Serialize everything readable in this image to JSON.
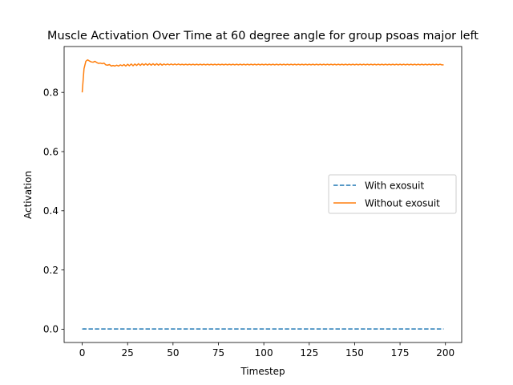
{
  "chart_data": {
    "type": "line",
    "title": "Muscle Activation Over Time at 60 degree angle for group psoas major left",
    "xlabel": "Timestep",
    "ylabel": "Activation",
    "xlim": [
      -9.95,
      208.95
    ],
    "ylim": [
      -0.045,
      0.955
    ],
    "xticks": [
      0,
      25,
      50,
      75,
      100,
      125,
      150,
      175,
      200
    ],
    "yticks": [
      0.0,
      0.2,
      0.4,
      0.6,
      0.8
    ],
    "ytick_labels": [
      "0.0",
      "0.2",
      "0.4",
      "0.6",
      "0.8"
    ],
    "grid": false,
    "legend_position": "center-right",
    "series": [
      {
        "name": "With exosuit",
        "color": "#1f77b4",
        "linestyle": "dashed",
        "x_start": 0,
        "x_step": 1,
        "values": [
          0.0005,
          0.001,
          0.0008,
          0.0006,
          0.0007,
          0.0006,
          0.0008,
          0.0006,
          0.0007,
          0.0006,
          0.0007,
          0.0006,
          0.0007,
          0.0006,
          0.0007,
          0.0006,
          0.0007,
          0.0006,
          0.0007,
          0.0006,
          0.0007,
          0.0006,
          0.0007,
          0.0006,
          0.0007,
          0.0006,
          0.0007,
          0.0006,
          0.0007,
          0.0006,
          0.0007,
          0.0006,
          0.0007,
          0.0006,
          0.0007,
          0.0006,
          0.0007,
          0.0006,
          0.0007,
          0.0006,
          0.0007,
          0.0006,
          0.0007,
          0.0006,
          0.0007,
          0.0006,
          0.0007,
          0.0006,
          0.0007,
          0.0006,
          0.0007,
          0.0006,
          0.0007,
          0.0006,
          0.0007,
          0.0006,
          0.0007,
          0.0006,
          0.0007,
          0.0006,
          0.0007,
          0.0006,
          0.0007,
          0.0006,
          0.0007,
          0.0006,
          0.0007,
          0.0006,
          0.0007,
          0.0006,
          0.0007,
          0.0006,
          0.0007,
          0.0006,
          0.0007,
          0.0006,
          0.0007,
          0.0006,
          0.0007,
          0.0006,
          0.0007,
          0.0006,
          0.0007,
          0.0006,
          0.0007,
          0.0006,
          0.0007,
          0.0006,
          0.0007,
          0.0006,
          0.0007,
          0.0006,
          0.0007,
          0.0006,
          0.0007,
          0.0006,
          0.0007,
          0.0006,
          0.0007,
          0.0006,
          0.0007,
          0.0006,
          0.0007,
          0.0006,
          0.0007,
          0.0006,
          0.0007,
          0.0006,
          0.0007,
          0.0006,
          0.0007,
          0.0006,
          0.0007,
          0.0006,
          0.0007,
          0.0006,
          0.0007,
          0.0006,
          0.0007,
          0.0006,
          0.0007,
          0.0006,
          0.0007,
          0.0006,
          0.0007,
          0.0006,
          0.0007,
          0.0006,
          0.0007,
          0.0006,
          0.0007,
          0.0006,
          0.0007,
          0.0006,
          0.0007,
          0.0006,
          0.0007,
          0.0006,
          0.0007,
          0.0006,
          0.0007,
          0.0006,
          0.0007,
          0.0006,
          0.0007,
          0.0006,
          0.0007,
          0.0006,
          0.0007,
          0.0006,
          0.0007,
          0.0006,
          0.0007,
          0.0006,
          0.0007,
          0.0006,
          0.0007,
          0.0006,
          0.0007,
          0.0006,
          0.0007,
          0.0006,
          0.0007,
          0.0006,
          0.0007,
          0.0006,
          0.0007,
          0.0006,
          0.0007,
          0.0006,
          0.0007,
          0.0006,
          0.0007,
          0.0006,
          0.0007,
          0.0006,
          0.0007,
          0.0006,
          0.0007,
          0.0006,
          0.0007,
          0.0006,
          0.0007,
          0.0006,
          0.0007,
          0.0006,
          0.0007,
          0.0006,
          0.0007,
          0.0006,
          0.0007,
          0.0006,
          0.0007,
          0.0006,
          0.0007,
          0.0006,
          0.0007,
          0.0006,
          0.0007,
          0.0006
        ]
      },
      {
        "name": "Without exosuit",
        "color": "#ff7f0e",
        "linestyle": "solid",
        "x_start": 0,
        "x_step": 1,
        "values": [
          0.8,
          0.88,
          0.905,
          0.91,
          0.906,
          0.903,
          0.902,
          0.905,
          0.901,
          0.898,
          0.899,
          0.897,
          0.899,
          0.893,
          0.892,
          0.894,
          0.889,
          0.891,
          0.889,
          0.892,
          0.889,
          0.893,
          0.89,
          0.894,
          0.889,
          0.895,
          0.89,
          0.896,
          0.89,
          0.896,
          0.891,
          0.897,
          0.891,
          0.897,
          0.892,
          0.897,
          0.892,
          0.897,
          0.892,
          0.897,
          0.892,
          0.897,
          0.892,
          0.897,
          0.892,
          0.896,
          0.893,
          0.896,
          0.893,
          0.896,
          0.893,
          0.896,
          0.893,
          0.896,
          0.893,
          0.895,
          0.893,
          0.895,
          0.893,
          0.895,
          0.893,
          0.895,
          0.893,
          0.895,
          0.893,
          0.895,
          0.893,
          0.895,
          0.893,
          0.895,
          0.893,
          0.895,
          0.893,
          0.895,
          0.893,
          0.895,
          0.893,
          0.895,
          0.893,
          0.895,
          0.893,
          0.895,
          0.893,
          0.895,
          0.893,
          0.895,
          0.893,
          0.895,
          0.893,
          0.895,
          0.893,
          0.895,
          0.893,
          0.895,
          0.893,
          0.895,
          0.893,
          0.895,
          0.893,
          0.895,
          0.893,
          0.895,
          0.893,
          0.895,
          0.893,
          0.895,
          0.893,
          0.895,
          0.893,
          0.895,
          0.893,
          0.895,
          0.893,
          0.895,
          0.893,
          0.895,
          0.893,
          0.895,
          0.893,
          0.895,
          0.893,
          0.895,
          0.893,
          0.895,
          0.893,
          0.895,
          0.893,
          0.895,
          0.893,
          0.895,
          0.893,
          0.895,
          0.893,
          0.895,
          0.893,
          0.895,
          0.893,
          0.895,
          0.893,
          0.895,
          0.893,
          0.895,
          0.893,
          0.895,
          0.893,
          0.895,
          0.893,
          0.895,
          0.893,
          0.895,
          0.893,
          0.895,
          0.893,
          0.895,
          0.893,
          0.895,
          0.893,
          0.895,
          0.893,
          0.895,
          0.893,
          0.895,
          0.893,
          0.895,
          0.893,
          0.895,
          0.893,
          0.895,
          0.893,
          0.895,
          0.893,
          0.895,
          0.893,
          0.895,
          0.893,
          0.895,
          0.893,
          0.895,
          0.893,
          0.895,
          0.893,
          0.895,
          0.893,
          0.895,
          0.893,
          0.895,
          0.893,
          0.895,
          0.893,
          0.895,
          0.893,
          0.895,
          0.893,
          0.895,
          0.893,
          0.895,
          0.893,
          0.895,
          0.893,
          0.893
        ]
      }
    ]
  }
}
